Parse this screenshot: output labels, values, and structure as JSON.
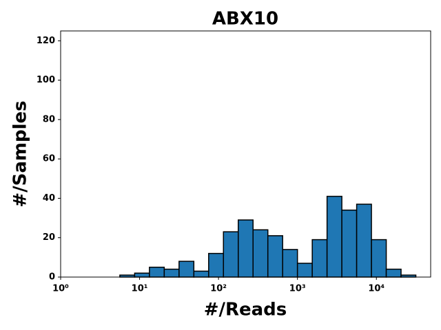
{
  "chart_data": {
    "type": "histogram",
    "title": "ABX10",
    "xlabel": "#/Reads",
    "ylabel": "#/Samples",
    "bins": [
      1,
      1.5399,
      2.3714,
      3.6517,
      5.6234,
      8.6596,
      13.335,
      20.535,
      31.623,
      48.697,
      74.989,
      115.48,
      177.83,
      273.84,
      421.7,
      649.38,
      1000,
      1539.9,
      2371.4,
      3651.7,
      5623.4,
      8659.6,
      13335,
      20535,
      31623,
      48697
    ],
    "values": [
      0,
      0,
      0,
      0,
      1,
      2,
      5,
      4,
      8,
      3,
      12,
      23,
      29,
      24,
      21,
      14,
      7,
      19,
      41,
      34,
      37,
      19,
      4,
      1,
      0
    ],
    "color": "#1f77b4",
    "edgecolor": "#000000",
    "xscale": "log",
    "xlim": [
      1,
      48697
    ],
    "xticks": [
      {
        "value": 1,
        "label": "10⁰"
      },
      {
        "value": 10,
        "label": "10¹"
      },
      {
        "value": 100,
        "label": "10²"
      },
      {
        "value": 1000,
        "label": "10³"
      },
      {
        "value": 10000,
        "label": "10⁴"
      }
    ],
    "ylim": [
      0,
      125
    ],
    "yticks": [
      0,
      20,
      40,
      60,
      80,
      100,
      120
    ],
    "grid": false
  }
}
